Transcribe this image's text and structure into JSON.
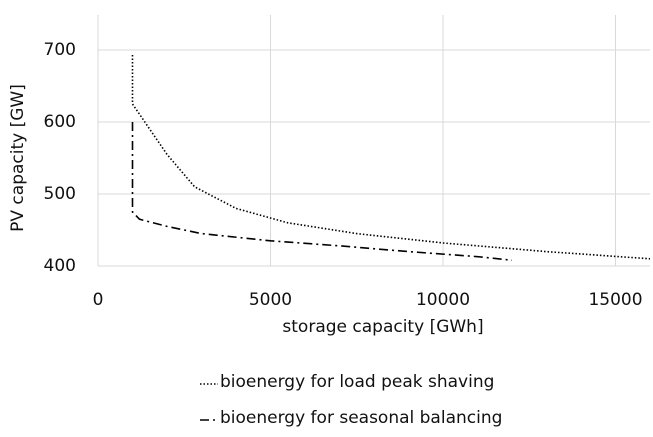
{
  "chart_data": {
    "type": "line",
    "x_label": "storage capacity [GWh]",
    "y_label": "PV capacity [GW]",
    "xlim": [
      0,
      16000
    ],
    "xticks": [
      0,
      5000,
      10000,
      15000
    ],
    "ylim": [
      400,
      700
    ],
    "yticks": [
      400,
      500,
      600,
      700
    ],
    "grid": true,
    "legend": "bottom",
    "series": [
      {
        "name": "bioenergy for load peak shaving",
        "color": "#000000",
        "dash": "dotted",
        "x": [
          1000,
          1000,
          1500,
          2000,
          2800,
          4000,
          5500,
          7500,
          10000,
          13000,
          16000
        ],
        "values": [
          693,
          625,
          590,
          555,
          510,
          480,
          460,
          445,
          432,
          420,
          410
        ]
      },
      {
        "name": "bioenergy for seasonal balancing",
        "color": "#000000",
        "dash": "dashdot",
        "x": [
          1000,
          1000,
          1200,
          2000,
          3000,
          5000,
          7000,
          9000,
          11000,
          12000
        ],
        "values": [
          600,
          475,
          465,
          455,
          445,
          435,
          428,
          420,
          413,
          408
        ]
      }
    ]
  }
}
